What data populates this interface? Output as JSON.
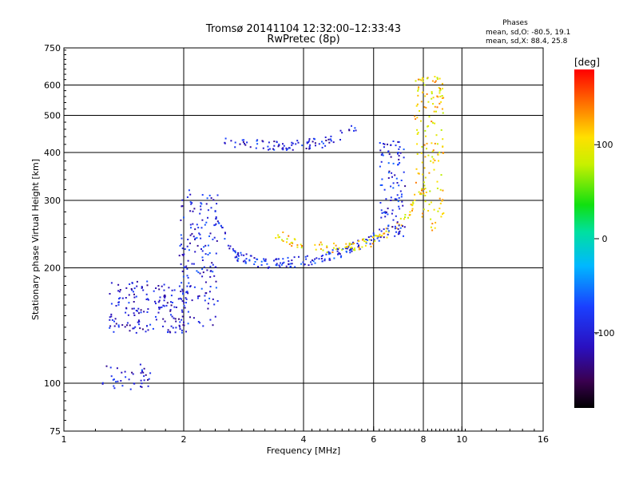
{
  "header": {
    "title_line1": "Tromsø 20141104 12:32:00–12:33:43",
    "title_line2": "RwPretec (8p)"
  },
  "stats": {
    "heading": "Phases",
    "line_o": "mean, sd,O: -80.5, 19.1",
    "line_x": "mean, sd,X:  88.4, 25.8"
  },
  "colorbar": {
    "label": "[deg]",
    "ticks": [
      {
        "value": 100,
        "label": "100"
      },
      {
        "value": 0,
        "label": "0"
      },
      {
        "value": -100,
        "label": "-100"
      }
    ],
    "range": [
      -180,
      180
    ]
  },
  "chart_data": {
    "type": "scatter",
    "title": "Tromsø 20141104 12:32:00–12:33:43",
    "subtitle": "RwPretec (8p)",
    "xlabel": "Frequency [MHz]",
    "ylabel": "Stationary phase Virtual Height [km]",
    "xscale": "log",
    "yscale": "log",
    "xlim": [
      1,
      16
    ],
    "ylim": [
      75,
      750
    ],
    "x_ticks": [
      1,
      2,
      4,
      6,
      8,
      10,
      16
    ],
    "y_ticks": [
      75,
      100,
      200,
      300,
      400,
      500,
      600,
      750
    ],
    "grid_x": [
      2,
      4,
      6,
      8,
      10
    ],
    "grid_y": [
      100,
      200,
      300,
      400,
      500,
      600
    ],
    "color_dimension": "Phase [deg]",
    "clusters": [
      {
        "desc": "E/Es low layer",
        "f_range": [
          1.25,
          1.65
        ],
        "h_range": [
          95,
          112
        ],
        "phase": -100,
        "n": 40
      },
      {
        "desc": "F-region lower band",
        "f_range": [
          1.3,
          2.05
        ],
        "h_range": [
          135,
          185
        ],
        "phase": -105,
        "n": 180
      },
      {
        "desc": "vertical band near 2 MHz",
        "f_range": [
          1.95,
          2.45
        ],
        "h_range": [
          140,
          320
        ],
        "phase": -95,
        "n": 160
      },
      {
        "desc": "O-mode F trace",
        "f_range": [
          2.4,
          6.2
        ],
        "h_curve": [
          [
            2.4,
            270
          ],
          [
            2.7,
            215
          ],
          [
            3.2,
            205
          ],
          [
            4,
            208
          ],
          [
            5,
            220
          ],
          [
            6,
            240
          ]
        ],
        "phase": -90,
        "n": 170
      },
      {
        "desc": "X-mode F trace",
        "f_range": [
          3.4,
          8.3
        ],
        "h_curve": [
          [
            3.4,
            245
          ],
          [
            4,
            228
          ],
          [
            5,
            225
          ],
          [
            6,
            235
          ],
          [
            7,
            260
          ],
          [
            8,
            320
          ]
        ],
        "phase": 110,
        "n": 110
      },
      {
        "desc": "cusp O-mode near 6.4 MHz",
        "f_range": [
          6.2,
          7.2
        ],
        "h_range": [
          240,
          430
        ],
        "phase": -95,
        "n": 110
      },
      {
        "desc": "cusp X-mode near 8.5 MHz",
        "f_range": [
          7.6,
          9.0
        ],
        "h_range": [
          250,
          640
        ],
        "phase": 110,
        "n": 150
      },
      {
        "desc": "upper F2 echo",
        "f_range": [
          2.5,
          5.5
        ],
        "h_curve": [
          [
            2.5,
            425
          ],
          [
            3.5,
            415
          ],
          [
            4.5,
            425
          ],
          [
            5.5,
            470
          ]
        ],
        "phase": -100,
        "n": 90
      }
    ]
  }
}
